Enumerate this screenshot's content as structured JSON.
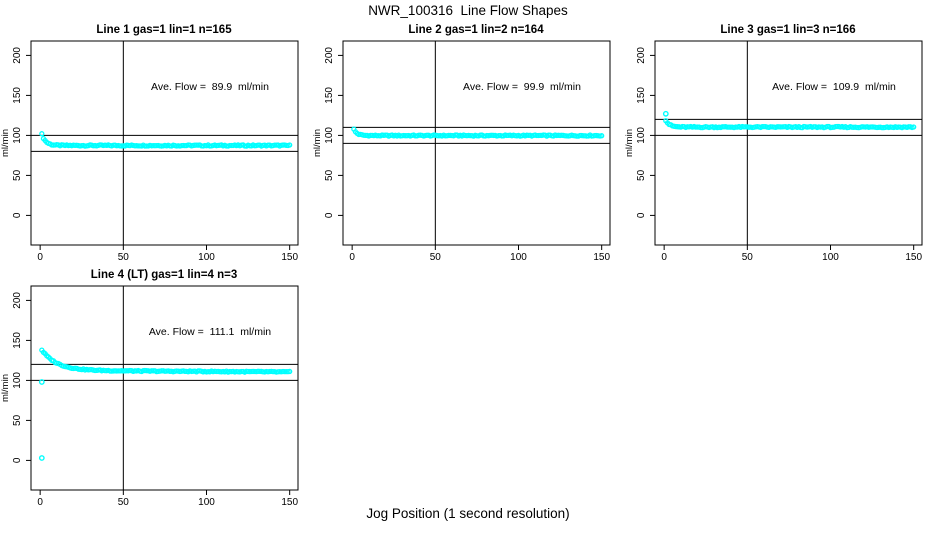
{
  "header": {
    "title": "NWR_100316  Line Flow Shapes"
  },
  "footer": {
    "xlabel": "Jog Position (1 second resolution)"
  },
  "colors": {
    "points": "#00FFFF",
    "axis": "#000000",
    "background": "#FFFFFF"
  },
  "chart_data": {
    "type": "scatter",
    "title": "NWR_100316  Line Flow Shapes",
    "xlabel": "Jog Position (1 second resolution)",
    "grid": false,
    "x_ticks": [
      0,
      50,
      100,
      150
    ],
    "y_ticks": [
      0,
      50,
      100,
      150,
      200
    ],
    "xlim": [
      -5.5,
      155
    ],
    "ylim": [
      -37,
      218
    ],
    "vline_x": 50,
    "point_color": "#00FFFF",
    "panels": [
      {
        "title": "Line 1 gas=1 lin=1 n=165",
        "ylab": "ml/min",
        "annotation": "Ave. Flow =  89.9  ml/min",
        "ave_flow": 89.9,
        "n": 165,
        "hline_upper": 100,
        "hline_lower": 80,
        "trace": {
          "x_start": 1,
          "x_end": 150,
          "start_value": 101.5,
          "settle_value": 87.4,
          "decay_tau": 2.4,
          "noise": 1.5,
          "drift": 0
        },
        "outliers": []
      },
      {
        "title": "Line 2 gas=1 lin=2 n=164",
        "ylab": "ml/min",
        "annotation": "Ave. Flow =  99.9  ml/min",
        "ave_flow": 99.9,
        "n": 164,
        "hline_upper": 110,
        "hline_lower": 90,
        "trace": {
          "x_start": 1,
          "x_end": 150,
          "start_value": 107.5,
          "settle_value": 99.8,
          "decay_tau": 2.0,
          "noise": 1.4,
          "drift": 0
        },
        "outliers": []
      },
      {
        "title": "Line 3 gas=1 lin=3 n=166",
        "ylab": "ml/min",
        "annotation": "Ave. Flow =  109.9  ml/min",
        "ave_flow": 109.9,
        "n": 166,
        "hline_upper": 120,
        "hline_lower": 100,
        "trace": {
          "x_start": 1,
          "x_end": 150,
          "start_value": 119,
          "settle_value": 110.4,
          "decay_tau": 2.2,
          "noise": 1.5,
          "drift": 0
        },
        "outliers": [
          [
            1,
            127
          ]
        ]
      },
      {
        "title": "Line 4 (LT) gas=1 lin=4 n=3",
        "ylab": "ml/min",
        "annotation": "Ave. Flow =  111.1  ml/min",
        "ave_flow": 111.1,
        "n": 3,
        "hline_upper": 120,
        "hline_lower": 100,
        "trace": {
          "x_start": 1,
          "x_end": 150,
          "start_value": 138,
          "settle_value": 112.5,
          "decay_tau": 9,
          "noise": 1.3,
          "drift": -0.013
        },
        "outliers": [
          [
            1,
            98
          ],
          [
            1,
            3
          ]
        ]
      }
    ]
  }
}
